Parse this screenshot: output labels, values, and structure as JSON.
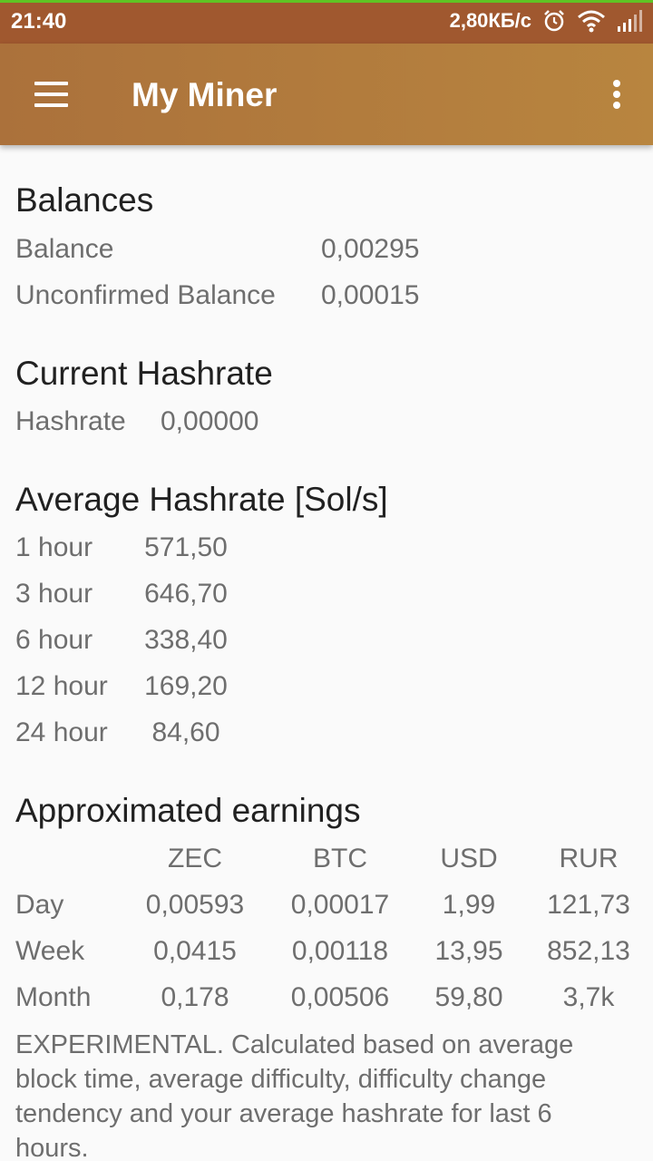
{
  "status_bar": {
    "time": "21:40",
    "speed": "2,80КБ/с",
    "icons": [
      "alarm-icon",
      "wifi-icon",
      "signal-icon"
    ]
  },
  "app_bar": {
    "title": "My Miner",
    "menu_icon": "hamburger-menu-icon",
    "overflow_icon": "more-vert-icon"
  },
  "balances": {
    "title": "Balances",
    "balance_label": "Balance",
    "balance_value": "0,00295",
    "unconfirmed_label": "Unconfirmed Balance",
    "unconfirmed_value": "0,00015"
  },
  "current_hashrate": {
    "title": "Current Hashrate",
    "label": "Hashrate",
    "value": "0,00000"
  },
  "average_hashrate": {
    "title": "Average Hashrate [Sol/s]",
    "rows": [
      {
        "label": "1 hour",
        "value": "571,50"
      },
      {
        "label": "3 hour",
        "value": "646,70"
      },
      {
        "label": "6 hour",
        "value": "338,40"
      },
      {
        "label": "12 hour",
        "value": "169,20"
      },
      {
        "label": "24 hour",
        "value": "84,60"
      }
    ]
  },
  "earnings": {
    "title": "Approximated earnings",
    "headers": [
      "ZEC",
      "BTC",
      "USD",
      "RUR"
    ],
    "rows": [
      {
        "label": "Day",
        "values": [
          "0,00593",
          "0,00017",
          "1,99",
          "121,73"
        ]
      },
      {
        "label": "Week",
        "values": [
          "0,0415",
          "0,00118",
          "13,95",
          "852,13"
        ]
      },
      {
        "label": "Month",
        "values": [
          "0,178",
          "0,00506",
          "59,80",
          "3,7k"
        ]
      }
    ],
    "note": "EXPERIMENTAL. Calculated based on average block time, average difficulty, difficulty change tendency and your average hashrate for last 6 hours."
  },
  "colors": {
    "status_bar": "#a0582f",
    "app_bar": "#b07a3d",
    "progress": "#5fc324",
    "background": "#fafafa"
  }
}
